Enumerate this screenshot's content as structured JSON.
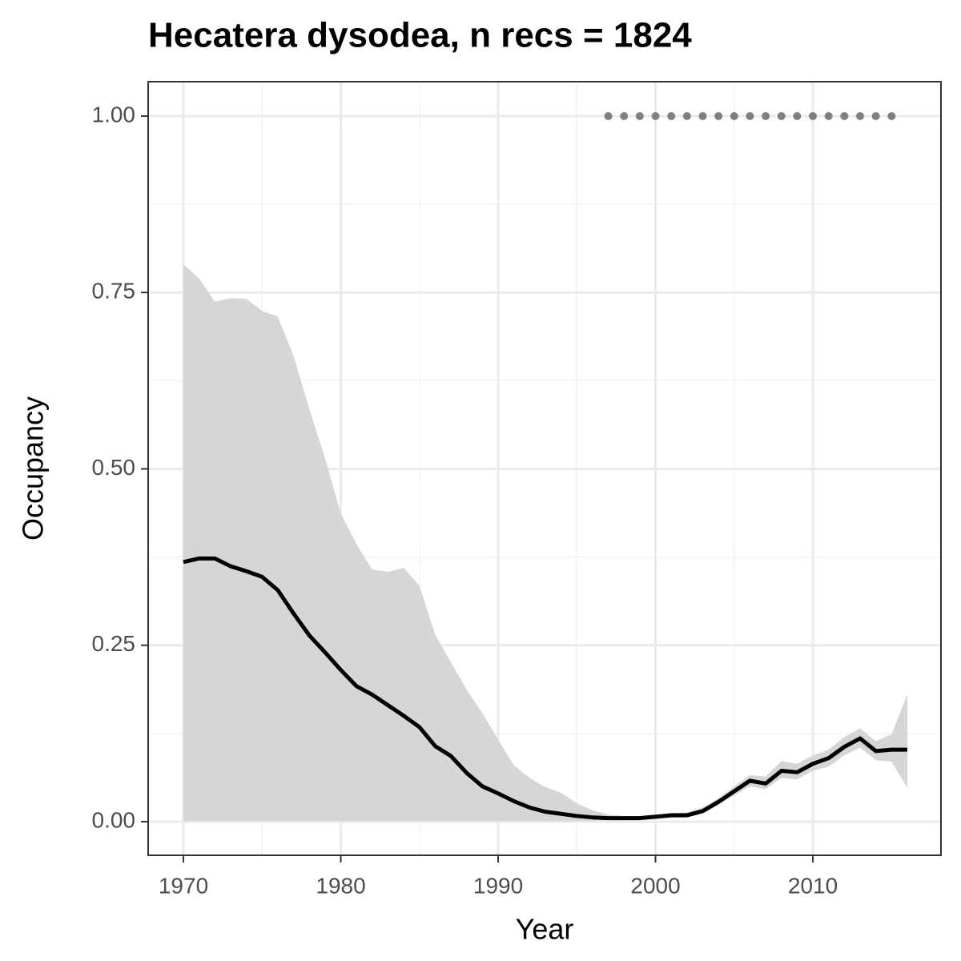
{
  "chart_data": {
    "type": "line",
    "title": "Hecatera dysodea, n recs = 1824",
    "xlabel": "Year",
    "ylabel": "Occupancy",
    "x": [
      1970,
      1971,
      1972,
      1973,
      1974,
      1975,
      1976,
      1977,
      1978,
      1979,
      1980,
      1981,
      1982,
      1983,
      1984,
      1985,
      1986,
      1987,
      1988,
      1989,
      1990,
      1991,
      1992,
      1993,
      1994,
      1995,
      1996,
      1997,
      1998,
      1999,
      2000,
      2001,
      2002,
      2003,
      2004,
      2005,
      2006,
      2007,
      2008,
      2009,
      2010,
      2011,
      2012,
      2013,
      2014,
      2015,
      2016
    ],
    "values": [
      0.368,
      0.373,
      0.373,
      0.362,
      0.355,
      0.347,
      0.328,
      0.295,
      0.264,
      0.24,
      0.215,
      0.192,
      0.18,
      0.165,
      0.15,
      0.134,
      0.107,
      0.093,
      0.069,
      0.05,
      0.04,
      0.029,
      0.02,
      0.014,
      0.011,
      0.008,
      0.006,
      0.005,
      0.005,
      0.005,
      0.007,
      0.009,
      0.009,
      0.015,
      0.028,
      0.043,
      0.058,
      0.054,
      0.072,
      0.07,
      0.082,
      0.09,
      0.106,
      0.118,
      0.1,
      0.102,
      0.102
    ],
    "upper": [
      0.79,
      0.77,
      0.737,
      0.742,
      0.741,
      0.724,
      0.716,
      0.66,
      0.585,
      0.515,
      0.437,
      0.393,
      0.357,
      0.354,
      0.36,
      0.334,
      0.265,
      0.226,
      0.187,
      0.154,
      0.116,
      0.08,
      0.062,
      0.049,
      0.041,
      0.026,
      0.016,
      0.01,
      0.008,
      0.008,
      0.01,
      0.012,
      0.013,
      0.02,
      0.033,
      0.05,
      0.066,
      0.064,
      0.086,
      0.082,
      0.094,
      0.102,
      0.12,
      0.132,
      0.114,
      0.124,
      0.18
    ],
    "lower": [
      0.001,
      0.001,
      0.001,
      0.001,
      0.001,
      0.001,
      0.001,
      0.001,
      0.001,
      0.001,
      0.001,
      0.001,
      0.001,
      0.001,
      0.001,
      0.001,
      0.001,
      0.001,
      0.001,
      0.001,
      0.001,
      0.001,
      0.001,
      0.001,
      0.001,
      0.001,
      0.001,
      0.002,
      0.002,
      0.002,
      0.003,
      0.005,
      0.006,
      0.011,
      0.024,
      0.037,
      0.05,
      0.046,
      0.062,
      0.06,
      0.072,
      0.078,
      0.094,
      0.105,
      0.087,
      0.085,
      0.048
    ],
    "color": "#000000",
    "band_color": "#d6d6d6",
    "points": {
      "x": [
        1997,
        1998,
        1999,
        2000,
        2001,
        2002,
        2003,
        2004,
        2005,
        2006,
        2007,
        2008,
        2009,
        2010,
        2011,
        2012,
        2013,
        2014,
        2015
      ],
      "values": [
        1,
        1,
        1,
        1,
        1,
        1,
        1,
        1,
        1,
        1,
        1,
        1,
        1,
        1,
        1,
        1,
        1,
        1,
        1
      ],
      "color": "#7f7f7f"
    },
    "xlim": [
      1967.76,
      2018.14
    ],
    "ylim": [
      -0.0477,
      1.0488
    ],
    "xticks": [
      1970,
      1980,
      1990,
      2000,
      2010
    ],
    "yticks": [
      {
        "value": 0,
        "label": "0.00"
      },
      {
        "value": 0.25,
        "label": "0.25"
      },
      {
        "value": 0.5,
        "label": "0.50"
      },
      {
        "value": 0.75,
        "label": "0.75"
      },
      {
        "value": 1,
        "label": "1.00"
      }
    ],
    "grid": true
  }
}
